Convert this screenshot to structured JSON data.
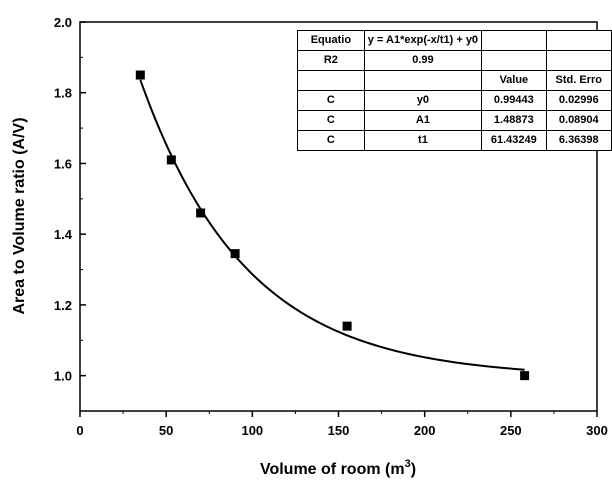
{
  "chart_data": {
    "type": "scatter",
    "xlabel": "Volume of room (m",
    "xlabel_sup": "3",
    "xlabel_end": ")",
    "ylabel": "Area to Volume ratio (A/V)",
    "xlim": [
      0,
      300
    ],
    "ylim": [
      0.9,
      2.0
    ],
    "x_ticks": [
      0,
      50,
      100,
      150,
      200,
      250,
      300
    ],
    "y_ticks": [
      1.0,
      1.2,
      1.4,
      1.6,
      1.8,
      2.0
    ],
    "grid": false,
    "legend": "none",
    "points": [
      {
        "x": 35,
        "y": 1.85
      },
      {
        "x": 53,
        "y": 1.61
      },
      {
        "x": 70,
        "y": 1.46
      },
      {
        "x": 90,
        "y": 1.345
      },
      {
        "x": 155,
        "y": 1.14
      },
      {
        "x": 258,
        "y": 1.0
      }
    ],
    "fit": {
      "model": "exponential-decay",
      "y0": 0.99443,
      "A1": 1.48873,
      "t1": 61.43249,
      "x_range": [
        35,
        258
      ]
    },
    "marker_color": "#000000",
    "line_color": "#000000"
  },
  "fit_table": {
    "rows": [
      [
        "Equatio",
        "y = A1*exp(-x/t1) + y0",
        "",
        ""
      ],
      [
        "R2",
        "0.99",
        "",
        ""
      ],
      [
        "",
        "",
        "Value",
        "Std. Erro"
      ],
      [
        "C",
        "y0",
        "0.99443",
        "0.02996"
      ],
      [
        "C",
        "A1",
        "1.48873",
        "0.08904"
      ],
      [
        "C",
        "t1",
        "61.43249",
        "6.36398"
      ]
    ]
  }
}
